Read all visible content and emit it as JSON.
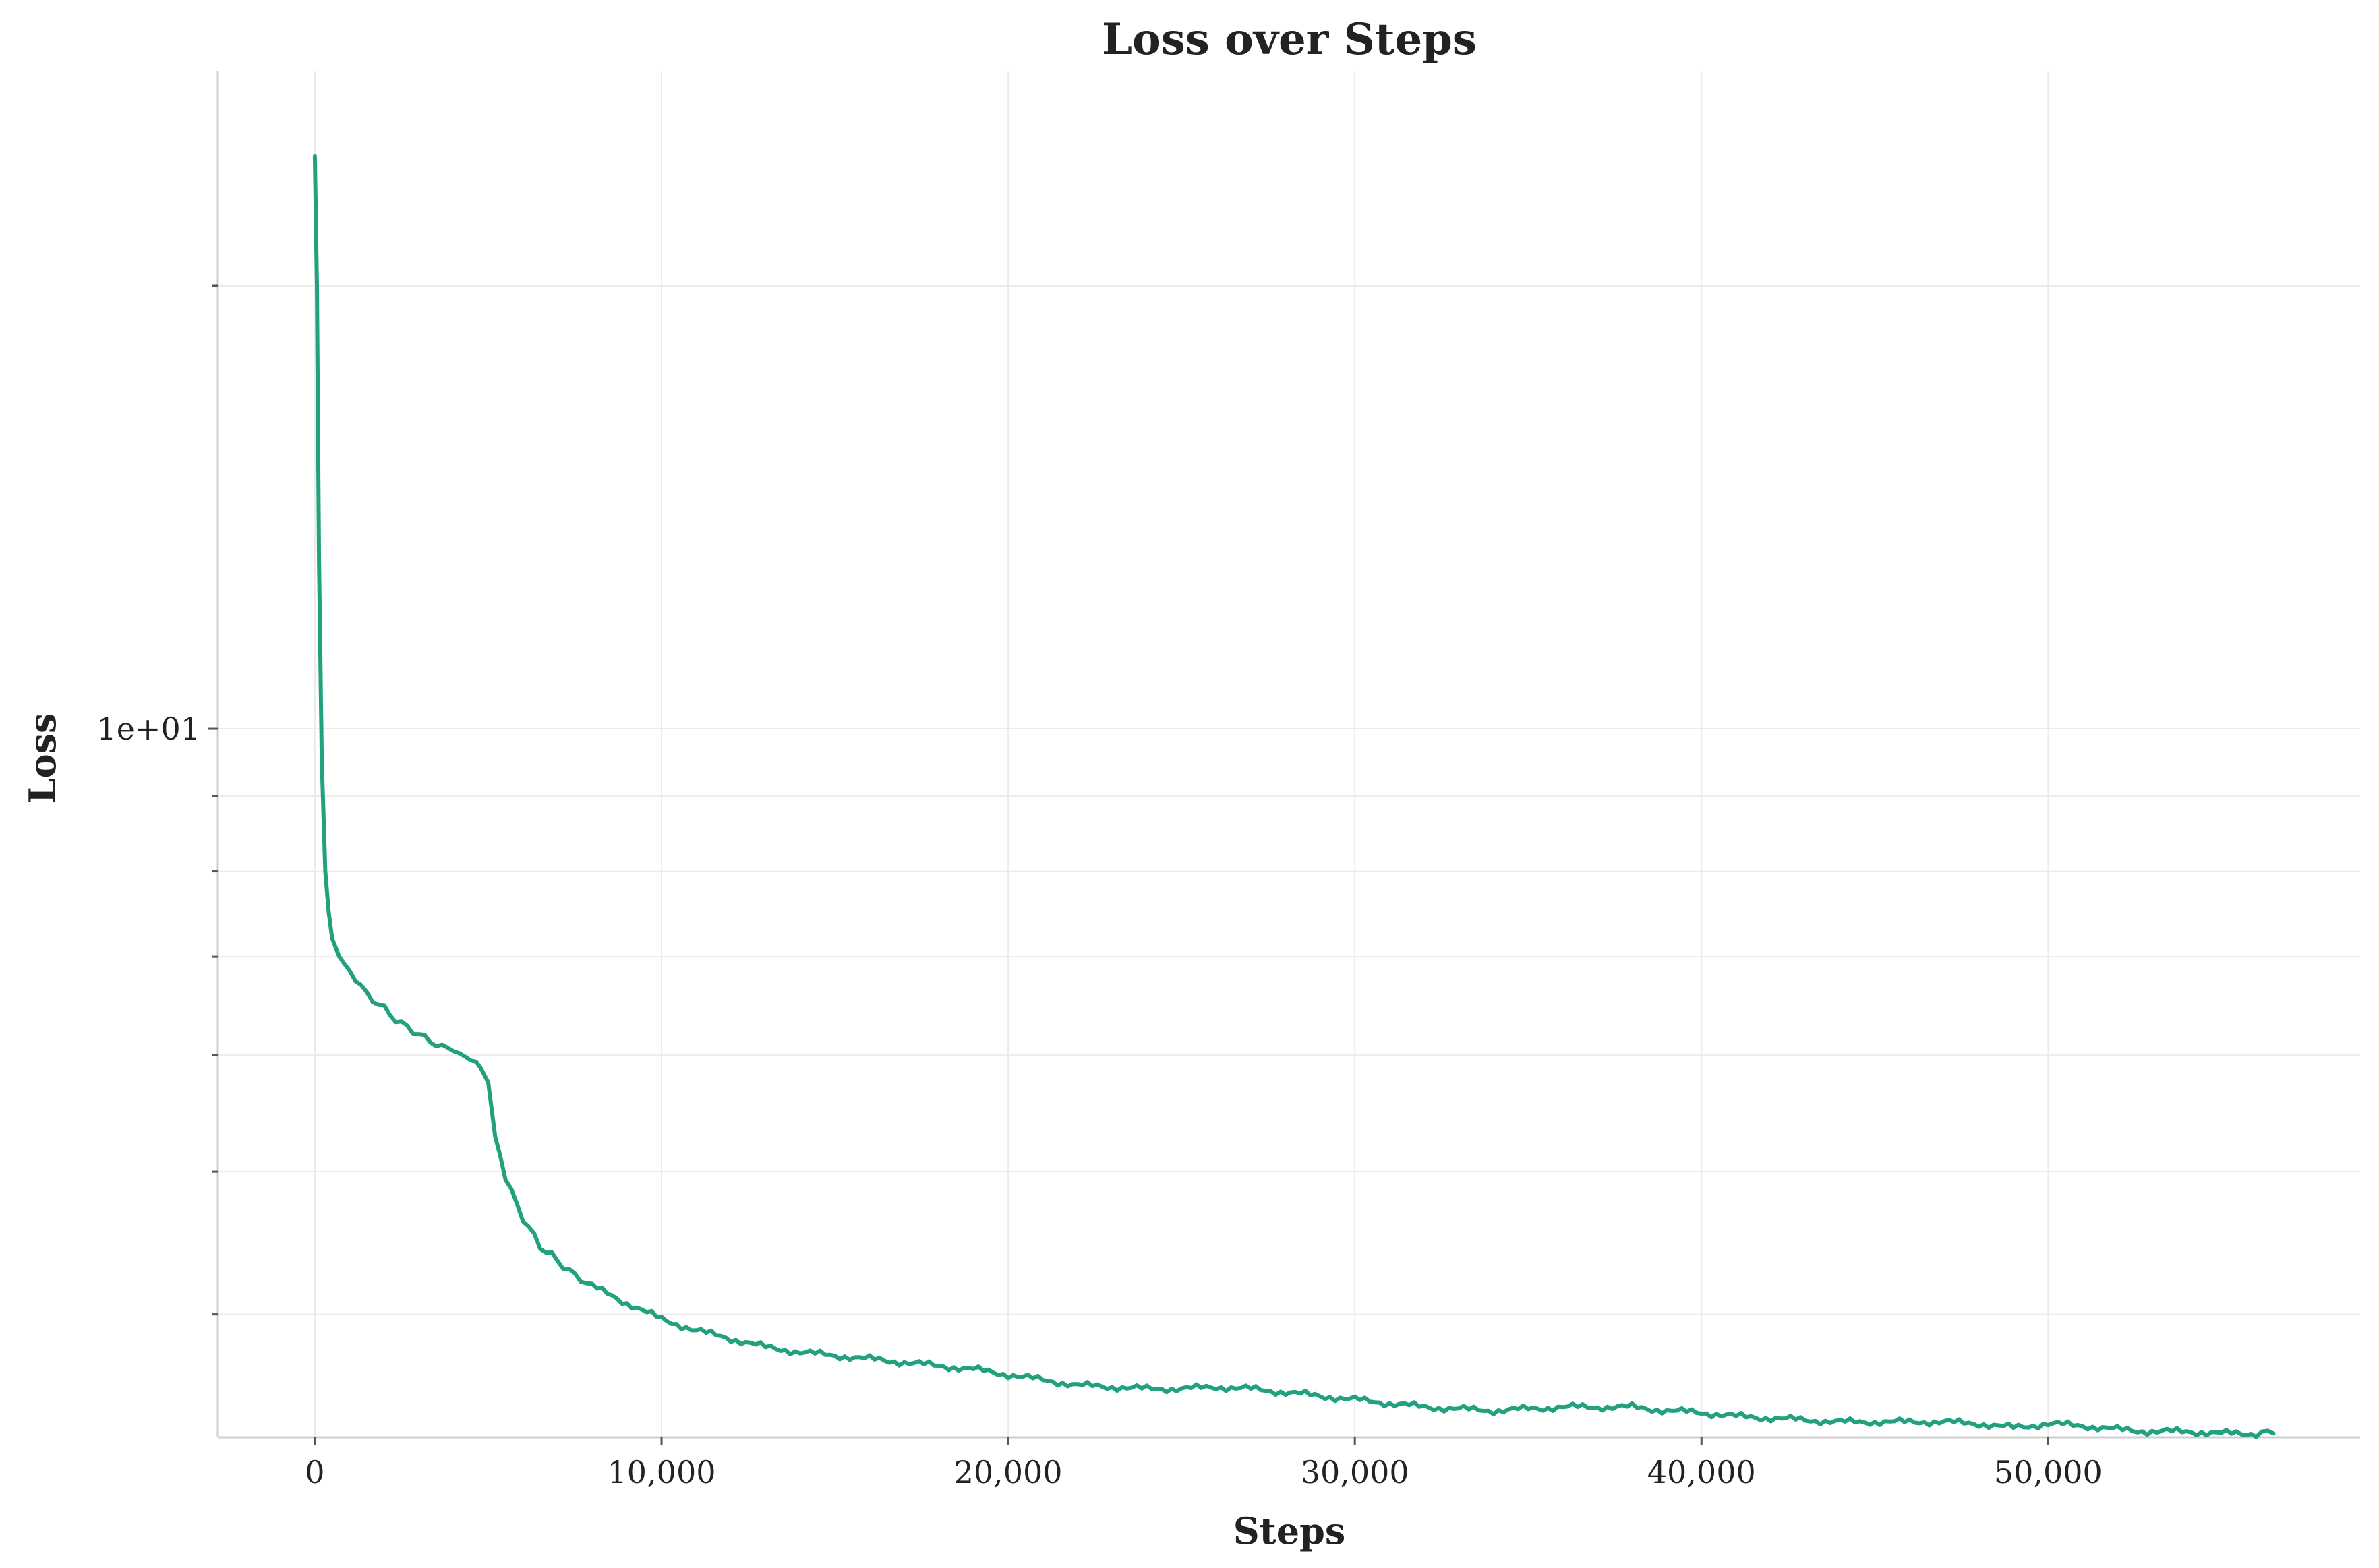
{
  "chart_data": {
    "type": "line",
    "title": "Loss over Steps",
    "xlabel": "Steps",
    "ylabel": "Loss",
    "y_scale": "log",
    "xlim": [
      -2800,
      59000
    ],
    "ylim": [
      3.3,
      28
    ],
    "x_ticks": [
      {
        "value": 0,
        "label": "0"
      },
      {
        "value": 10000,
        "label": "10,000"
      },
      {
        "value": 20000,
        "label": "20,000"
      },
      {
        "value": 30000,
        "label": "30,000"
      },
      {
        "value": 40000,
        "label": "40,000"
      },
      {
        "value": 50000,
        "label": "50,000"
      }
    ],
    "y_major_ticks": [
      {
        "value": 10,
        "label": "1e+01"
      }
    ],
    "y_minor_ticks": [
      4,
      5,
      6,
      7,
      8,
      9,
      20
    ],
    "grid": true,
    "series": [
      {
        "color": "#23a17f",
        "x": [
          0,
          60,
          120,
          200,
          300,
          400,
          500,
          700,
          1000,
          1500,
          2000,
          2500,
          3000,
          3500,
          4000,
          4500,
          4800,
          5000,
          5200,
          5500,
          6000,
          6500,
          7000,
          7500,
          8000,
          9000,
          10000,
          11000,
          12000,
          13000,
          14000,
          15000,
          16000,
          17000,
          18000,
          19000,
          20000,
          21000,
          22000,
          23000,
          24000,
          25000,
          26000,
          27000,
          28000,
          29000,
          30000,
          31000,
          32000,
          33000,
          34000,
          35000,
          36000,
          37000,
          38000,
          39000,
          40000,
          41000,
          42000,
          43000,
          44000,
          45000,
          46000,
          47000,
          48000,
          49000,
          50000,
          51000,
          52000,
          53000,
          54000,
          55000,
          56000,
          56500
        ],
        "y": [
          24.5,
          20.0,
          13.0,
          9.5,
          8.0,
          7.5,
          7.2,
          7.0,
          6.85,
          6.6,
          6.45,
          6.3,
          6.2,
          6.1,
          6.05,
          5.95,
          5.9,
          5.75,
          5.3,
          4.95,
          4.65,
          4.45,
          4.35,
          4.25,
          4.18,
          4.07,
          3.97,
          3.9,
          3.85,
          3.8,
          3.77,
          3.75,
          3.73,
          3.71,
          3.69,
          3.67,
          3.64,
          3.61,
          3.58,
          3.57,
          3.56,
          3.56,
          3.57,
          3.56,
          3.54,
          3.52,
          3.5,
          3.48,
          3.46,
          3.45,
          3.44,
          3.45,
          3.46,
          3.46,
          3.46,
          3.44,
          3.43,
          3.41,
          3.4,
          3.39,
          3.38,
          3.38,
          3.38,
          3.38,
          3.37,
          3.35,
          3.37,
          3.36,
          3.34,
          3.33,
          3.33,
          3.32,
          3.32,
          3.32
        ]
      }
    ]
  }
}
